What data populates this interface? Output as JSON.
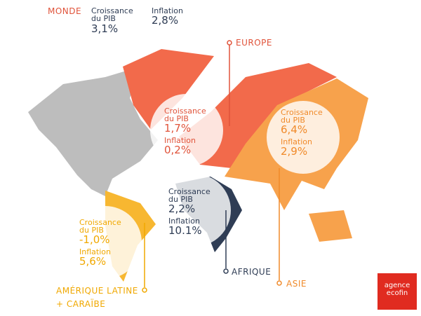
{
  "world": {
    "label": "MONDE",
    "gdp_label": "Croissance du PIB",
    "gdp": "3,1%",
    "inflation_label": "Inflation",
    "inflation": "2,8%"
  },
  "regions": [
    {
      "name": "EUROPE",
      "gdp_label": "Croissance du PIB",
      "gdp": "1,7%",
      "inflation_label": "Inflation",
      "inflation": "0,2%"
    },
    {
      "name": "ASIE",
      "gdp_label": "Croissance du PIB",
      "gdp": "6,4%",
      "inflation_label": "Inflation",
      "inflation": "2,9%"
    },
    {
      "name": "AFRIQUE",
      "gdp_label": "Croissance du PIB",
      "gdp": "2,2%",
      "inflation_label": "Inflation",
      "inflation": "10.1%"
    },
    {
      "name": "AMÉRIQUE LATINE",
      "name_line2": "+ CARAÏBE",
      "gdp_label": "Croissance du PIB",
      "gdp": "-1,0%",
      "inflation_label": "Inflation",
      "inflation": "5,6%"
    }
  ],
  "logo": {
    "line1": "agence",
    "line2": "ecofin"
  }
}
